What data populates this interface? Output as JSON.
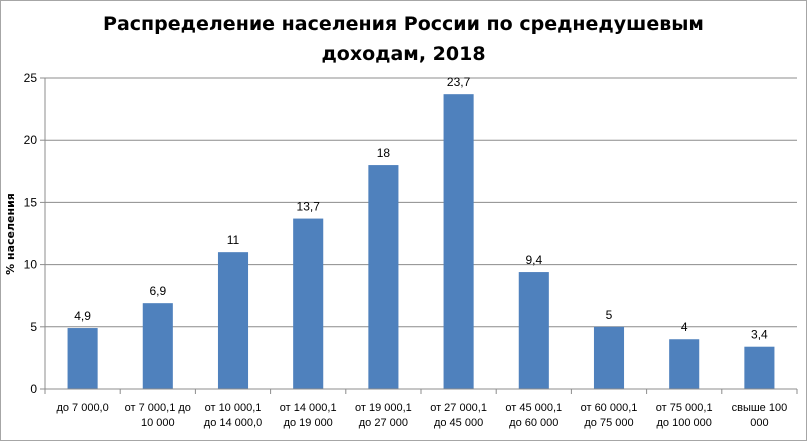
{
  "chart_data": {
    "type": "bar",
    "title_lines": [
      "Распределение населения России по среднедушевым",
      "доходам, 2018"
    ],
    "ylabel": "% населения",
    "xlabel": "",
    "ylim": [
      0,
      25
    ],
    "yticks": [
      "0",
      "5",
      "10",
      "15",
      "20",
      "25"
    ],
    "grid": true,
    "legend": "none",
    "bar_color": "#4f81bd",
    "categories": [
      [
        "до 7 000,0"
      ],
      [
        "от 7 000,1 до",
        "10 000"
      ],
      [
        "от 10 000,1",
        "до 14 000,0"
      ],
      [
        "от 14 000,1",
        "до 19 000"
      ],
      [
        "от 19 000,1",
        "до 27 000"
      ],
      [
        "от 27 000,1",
        "до 45 000"
      ],
      [
        "от 45 000,1",
        "до 60 000"
      ],
      [
        "от 60 000,1",
        "до 75 000"
      ],
      [
        "от 75 000,1",
        "до 100 000"
      ],
      [
        "свыше 100",
        "000"
      ]
    ],
    "values": [
      4.9,
      6.9,
      11,
      13.7,
      18,
      23.7,
      9.4,
      5,
      4,
      3.4
    ],
    "value_labels": [
      "4,9",
      "6,9",
      "11",
      "13,7",
      "18",
      "23,7",
      "9,4",
      "5",
      "4",
      "3,4"
    ]
  }
}
